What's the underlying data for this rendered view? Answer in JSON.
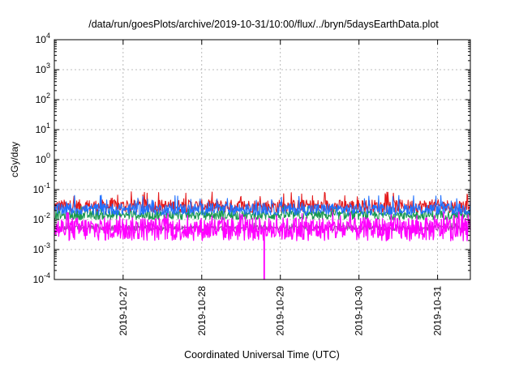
{
  "chart_data": {
    "type": "line",
    "title": "/data/run/goesPlots/archive/2019-10-31/10:00/flux/../bryn/5daysEarthData.plot",
    "xlabel": "Coordinated Universal Time (UTC)",
    "ylabel": "cGy/day",
    "yscale": "log",
    "ylim": [
      0.0001,
      10000
    ],
    "xlim": [
      "2019-10-26T03:00",
      "2019-10-31T10:00"
    ],
    "grid": true,
    "legend": "none",
    "y_ticks": [
      {
        "value": 10000,
        "base": "10",
        "exp": "4"
      },
      {
        "value": 1000,
        "base": "10",
        "exp": "3"
      },
      {
        "value": 100,
        "base": "10",
        "exp": "2"
      },
      {
        "value": 10,
        "base": "10",
        "exp": "1"
      },
      {
        "value": 1,
        "base": "10",
        "exp": "0"
      },
      {
        "value": 0.1,
        "base": "10",
        "exp": "-1"
      },
      {
        "value": 0.01,
        "base": "10",
        "exp": "-2"
      },
      {
        "value": 0.001,
        "base": "10",
        "exp": "-3"
      },
      {
        "value": 0.0001,
        "base": "10",
        "exp": "-4"
      }
    ],
    "x_ticks": [
      {
        "value": "2019-10-27T00:00",
        "label": "2019-10-27"
      },
      {
        "value": "2019-10-28T00:00",
        "label": "2019-10-28"
      },
      {
        "value": "2019-10-29T00:00",
        "label": "2019-10-29"
      },
      {
        "value": "2019-10-30T00:00",
        "label": "2019-10-30"
      },
      {
        "value": "2019-10-31T00:00",
        "label": "2019-10-31"
      }
    ],
    "series": [
      {
        "color": "#e41a1c",
        "base": 0.028,
        "spread": 0.5,
        "spike_max": 0.085
      },
      {
        "color": "#1a9850",
        "base": 0.014,
        "spread": 0.35,
        "spike_max": 0.03
      },
      {
        "color": "#984ea3",
        "base": 0.0052,
        "spread": 0.2,
        "spike_max": 0.008
      },
      {
        "color": "#2171ff",
        "base": 0.022,
        "spread": 0.45,
        "spike_max": 0.065
      },
      {
        "color": "#ff00ff",
        "base": 0.0048,
        "spread": 0.9,
        "spike_max": 0.018,
        "dropout": {
          "time": "2019-10-28T19:00",
          "value": 0.0001
        }
      }
    ]
  }
}
